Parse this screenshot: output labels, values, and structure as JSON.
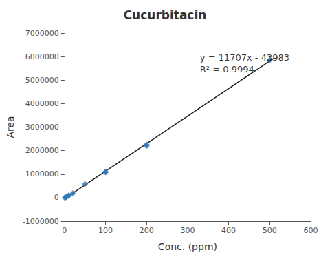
{
  "chart_data": {
    "type": "scatter",
    "title": "Cucurbitacin",
    "x_label": "Conc. (ppm)",
    "y_label": "Area",
    "series": [
      {
        "type": "scatter",
        "x": [
          1,
          2,
          5,
          10,
          10,
          20,
          50,
          100,
          100,
          200,
          200,
          500
        ],
        "values": [
          0,
          15000,
          30000,
          80000,
          90000,
          180000,
          580000,
          1080000,
          1100000,
          2200000,
          2250000,
          5850000
        ],
        "color": "#2E75B6",
        "marker": "diamond"
      },
      {
        "type": "line",
        "x": [
          0,
          510
        ],
        "values": [
          -43983,
          5926587
        ],
        "color": "#1a1a1a"
      }
    ],
    "xlim": [
      0,
      600
    ],
    "xticks": [
      0,
      100,
      200,
      300,
      400,
      500,
      600
    ],
    "ylim": [
      -1000000,
      7000000
    ],
    "yticks": [
      -1000000,
      0,
      1000000,
      2000000,
      3000000,
      4000000,
      5000000,
      6000000,
      7000000
    ],
    "grid": false,
    "annotations": [
      {
        "text": "y = 11707x - 43983\nR² = 0.9994",
        "x": 330,
        "y": 6200000
      }
    ]
  }
}
